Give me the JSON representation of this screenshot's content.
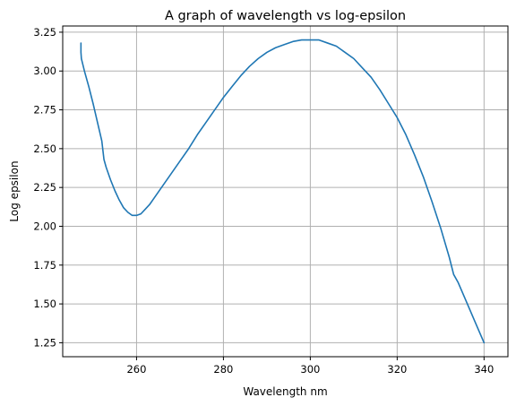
{
  "chart_data": {
    "type": "line",
    "title": "A graph of wavelength vs log-epsilon",
    "xlabel": "Wavelength nm",
    "ylabel": "Log epsilon",
    "xlim": [
      243,
      345.5
    ],
    "ylim": [
      1.16,
      3.29
    ],
    "xticks": [
      260,
      280,
      300,
      320,
      340
    ],
    "xtick_labels": [
      "260",
      "280",
      "300",
      "320",
      "340"
    ],
    "yticks": [
      1.25,
      1.5,
      1.75,
      2.0,
      2.25,
      2.5,
      2.75,
      3.0,
      3.25
    ],
    "ytick_labels": [
      "1.25",
      "1.50",
      "1.75",
      "2.00",
      "2.25",
      "2.50",
      "2.75",
      "3.00",
      "3.25"
    ],
    "grid": true,
    "series_color": "#1f77b4",
    "series": [
      {
        "x": [
          247.2,
          247.2,
          247.3,
          248,
          249,
          250,
          251,
          252,
          252.5,
          253,
          254,
          255,
          256,
          257,
          258,
          259,
          260,
          261,
          262,
          263,
          264,
          266,
          268,
          270,
          272,
          274,
          276,
          278,
          280,
          282,
          284,
          286,
          288,
          290,
          292,
          294,
          296,
          298,
          300,
          302,
          304,
          306,
          308,
          310,
          312,
          314,
          316,
          318,
          320,
          322,
          324,
          326,
          328,
          330,
          332,
          333,
          334,
          336,
          338,
          340
        ],
        "y": [
          3.18,
          3.12,
          3.08,
          3.0,
          2.9,
          2.79,
          2.67,
          2.55,
          2.43,
          2.38,
          2.3,
          2.23,
          2.17,
          2.12,
          2.09,
          2.07,
          2.07,
          2.08,
          2.11,
          2.14,
          2.18,
          2.26,
          2.34,
          2.42,
          2.5,
          2.59,
          2.67,
          2.75,
          2.83,
          2.9,
          2.97,
          3.03,
          3.08,
          3.12,
          3.15,
          3.17,
          3.19,
          3.2,
          3.2,
          3.2,
          3.18,
          3.16,
          3.12,
          3.08,
          3.02,
          2.96,
          2.88,
          2.79,
          2.7,
          2.59,
          2.46,
          2.32,
          2.16,
          1.99,
          1.8,
          1.69,
          1.64,
          1.51,
          1.38,
          1.25
        ]
      }
    ]
  }
}
